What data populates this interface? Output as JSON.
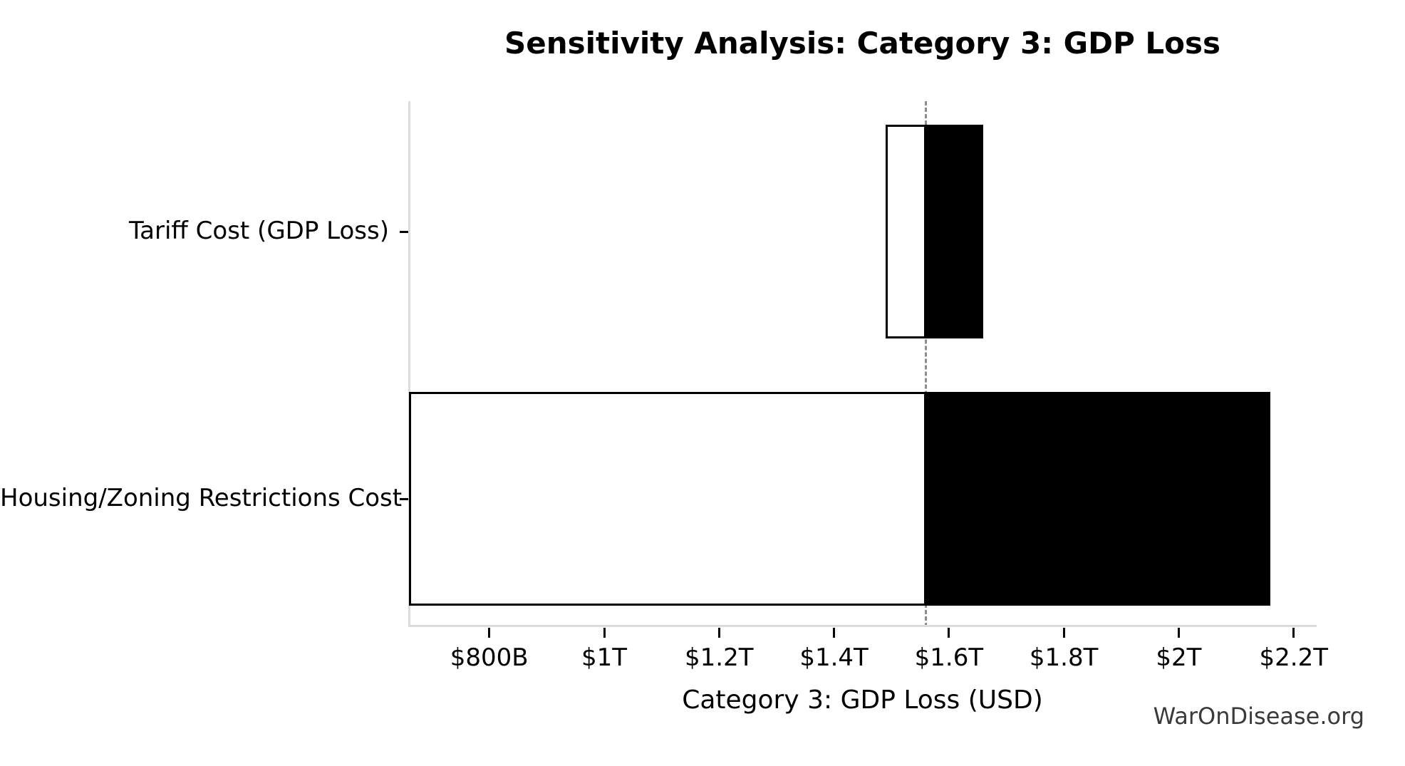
{
  "figure": {
    "watermark": "WarOnDisease.org"
  },
  "chart_data": {
    "type": "bar",
    "subtype": "tornado-sensitivity",
    "orientation": "horizontal",
    "title": "Sensitivity Analysis: Category 3: GDP Loss",
    "xlabel": "Category 3: GDP Loss (USD)",
    "ylabel": "",
    "unit": "USD trillions",
    "baseline": 1.56,
    "categories": [
      "Tariff Cost (GDP Loss)",
      "Housing/Zoning Restrictions Cost"
    ],
    "series": [
      {
        "name": "Tariff Cost (GDP Loss)",
        "low": 1.49,
        "high": 1.66
      },
      {
        "name": "Housing/Zoning Restrictions Cost",
        "low": 0.66,
        "high": 2.16
      }
    ],
    "x_ticks": [
      {
        "value": 0.8,
        "label": "$800B"
      },
      {
        "value": 1.0,
        "label": "$1T"
      },
      {
        "value": 1.2,
        "label": "$1.2T"
      },
      {
        "value": 1.4,
        "label": "$1.4T"
      },
      {
        "value": 1.6,
        "label": "$1.6T"
      },
      {
        "value": 1.8,
        "label": "$1.8T"
      },
      {
        "value": 2.0,
        "label": "$2T"
      },
      {
        "value": 2.2,
        "label": "$2.2T"
      }
    ],
    "xlim": [
      0.659,
      2.24
    ],
    "grid": false,
    "legend": null,
    "colors": {
      "bar_low_fill": "#ffffff",
      "bar_high_fill": "#000000",
      "bar_outline": "#000000",
      "baseline_line": "#8c8c8c",
      "spine": "#dcdcdc",
      "tick": "#000000",
      "text": "#000000",
      "watermark": "#3a3a3a"
    }
  }
}
